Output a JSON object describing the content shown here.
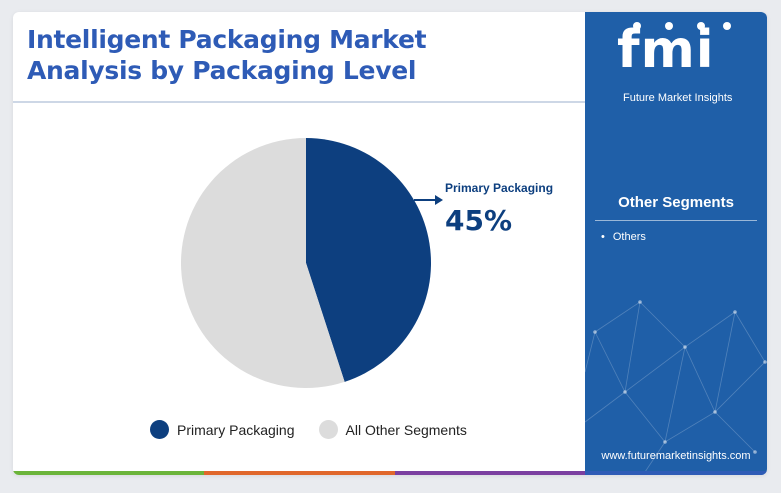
{
  "title_lines": [
    "Intelligent Packaging Market",
    "Analysis by Packaging Level"
  ],
  "brand": {
    "logo_text": "fmi",
    "tagline": "Future Market Insights",
    "website": "www.futuremarketinsights.com",
    "panel_color": "#1f5fa8"
  },
  "other_segments": {
    "heading": "Other Segments",
    "items": [
      "Others"
    ]
  },
  "chart_data": {
    "type": "pie",
    "slices": [
      {
        "label": "Primary Packaging",
        "value": 45,
        "color": "#0d3f7f"
      },
      {
        "label": "All Other Segments",
        "value": 55,
        "color": "#dcdcdc"
      }
    ],
    "annotation": {
      "label": "Primary Packaging",
      "value_text": "45%"
    }
  },
  "legend": [
    {
      "label": "Primary Packaging",
      "color": "#0d3f7f"
    },
    {
      "label": "All Other Segments",
      "color": "#dcdcdc"
    }
  ],
  "bottom_bar_colors": [
    "#6bb43a",
    "#e0672b",
    "#7b3fa0",
    "#2e5bb6"
  ]
}
